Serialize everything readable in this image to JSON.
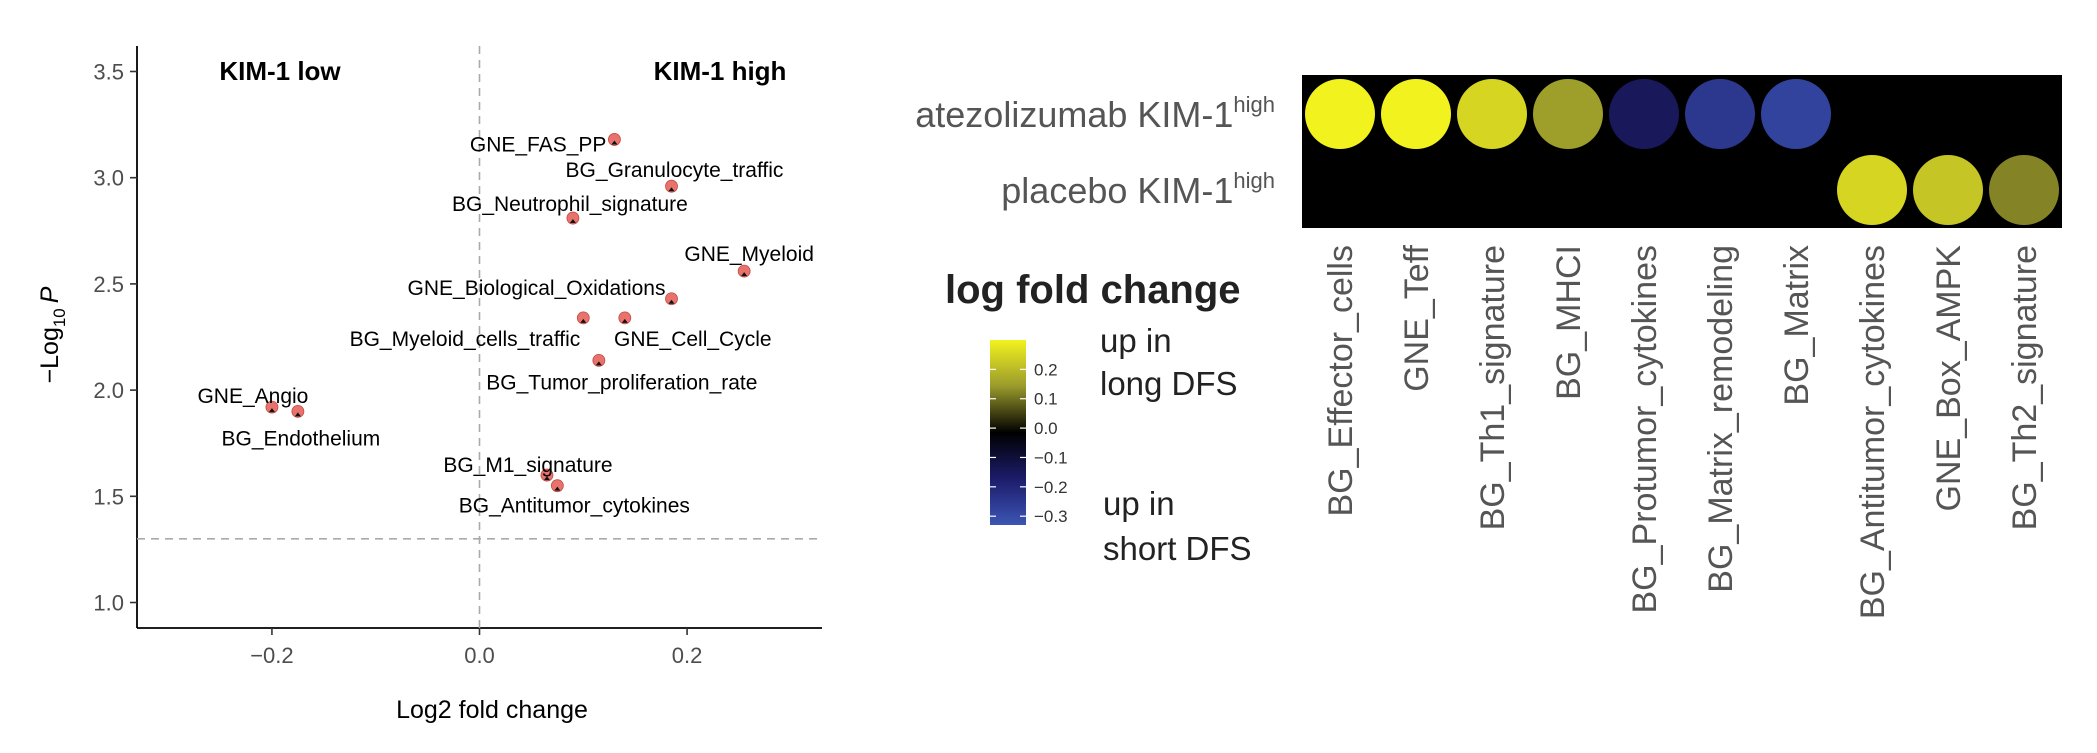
{
  "chart_data": [
    {
      "type": "scatter",
      "title": "",
      "xlabel": "Log2 fold change",
      "ylabel": "−Log10 P",
      "ylabel_parts": {
        "prefix": "−Log",
        "sub": "10",
        "italic": "P"
      },
      "xlim": [
        -0.33,
        0.33
      ],
      "ylim": [
        0.88,
        3.62
      ],
      "xticks": [
        -0.2,
        0.0,
        0.2
      ],
      "xtick_labels": [
        "−0.2",
        "0.0",
        "0.2"
      ],
      "yticks": [
        1.0,
        1.5,
        2.0,
        2.5,
        3.0,
        3.5
      ],
      "ytick_labels": [
        "1.0",
        "1.5",
        "2.0",
        "2.5",
        "3.0",
        "3.5"
      ],
      "grid": false,
      "reference_lines": {
        "vertical_x": 0.0,
        "horizontal_y": 1.3
      },
      "group_titles": {
        "left": "KIM-1 low",
        "right": "KIM-1 high"
      },
      "point_color": "#e8736c",
      "points": [
        {
          "label": "GNE_FAS_PP",
          "x": 0.13,
          "y": 3.18
        },
        {
          "label": "BG_Granulocyte_traffic",
          "x": 0.185,
          "y": 2.96
        },
        {
          "label": "BG_Neutrophil_signature",
          "x": 0.09,
          "y": 2.81
        },
        {
          "label": "GNE_Myeloid",
          "x": 0.255,
          "y": 2.56
        },
        {
          "label": "GNE_Biological_Oxidations",
          "x": 0.185,
          "y": 2.43
        },
        {
          "label": "BG_Myeloid_cells_traffic",
          "x": 0.1,
          "y": 2.34
        },
        {
          "label": "GNE_Cell_Cycle",
          "x": 0.14,
          "y": 2.34
        },
        {
          "label": "BG_Tumor_proliferation_rate",
          "x": 0.115,
          "y": 2.14
        },
        {
          "label": "GNE_Angio",
          "x": -0.2,
          "y": 1.92
        },
        {
          "label": "BG_Endothelium",
          "x": -0.175,
          "y": 1.9
        },
        {
          "label": "BG_M1_signature",
          "x": 0.065,
          "y": 1.6
        },
        {
          "label": "BG_Antitumor_cytokines",
          "x": 0.075,
          "y": 1.55
        }
      ]
    },
    {
      "type": "heatmap",
      "title": "",
      "rows": [
        {
          "name": "atezolizumab KIM-1",
          "sup": "high"
        },
        {
          "name": "placebo KIM-1",
          "sup": "high"
        }
      ],
      "columns": [
        "BG_Effector_cells",
        "GNE_Teff",
        "BG_Th1_signature",
        "BG_MHCI",
        "BG_Protumor_cytokines",
        "BG_Matrix_remodeling",
        "BG_Matrix",
        "BG_Antitumor_cytokines",
        "GNE_Box_AMPK",
        "BG_Th2_signature"
      ],
      "values": [
        [
          0.3,
          0.3,
          0.25,
          0.15,
          -0.15,
          -0.25,
          -0.28,
          null,
          null,
          null
        ],
        [
          null,
          null,
          null,
          null,
          null,
          null,
          null,
          0.25,
          0.22,
          0.12
        ]
      ],
      "background": "#000000",
      "legend": {
        "title": "log fold change",
        "ticks": [
          0.2,
          0.1,
          0.0,
          -0.1,
          -0.2,
          -0.3
        ],
        "tick_labels": [
          "0.2",
          "0.1",
          "0.0",
          "−0.1",
          "−0.2",
          "−0.3"
        ],
        "range": [
          -0.33,
          0.3
        ],
        "top_note": [
          "up in",
          "long DFS"
        ],
        "bottom_note": [
          "up in",
          "short DFS"
        ],
        "color_stops": [
          "#f2f21e",
          "#9a9a2c",
          "#000000",
          "#1c1c6a",
          "#3c55b4"
        ]
      }
    }
  ]
}
